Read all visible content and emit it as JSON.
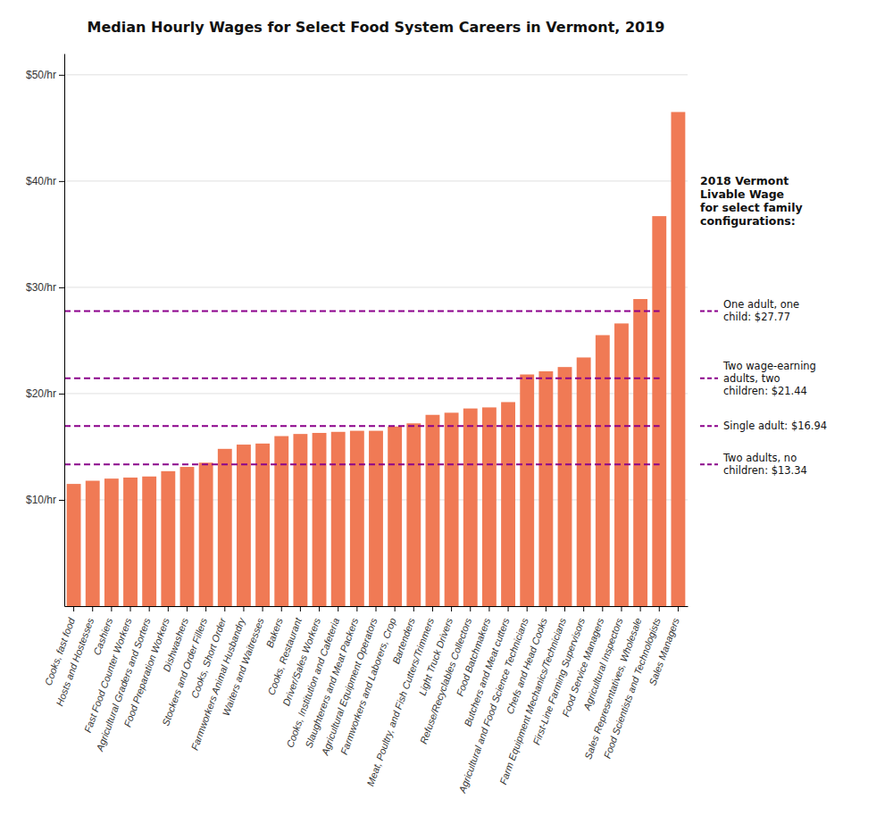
{
  "chart_data": {
    "type": "bar",
    "title": "Median Hourly Wages for Select Food System Careers in Vermont, 2019",
    "categories": [
      "Cooks, fast food",
      "Hosts and Hostesses",
      "Cashiers",
      "Fast Food Counter Workers",
      "Agricultural Graders and Sorters",
      "Food Preparation Workers",
      "Dishwashers",
      "Stockers and Order Fillers",
      "Cooks, Short Order",
      "Farmworkers Animal Husbandry",
      "Waiters and Waitresses",
      "Bakers",
      "Cooks, Restaurant",
      "Driver/Sales Workers",
      "Cooks, Institution and Cafeteria",
      "Slaughterers and Meat Packers",
      "Agricultural Equipment Operators",
      "Farmworkers and Laborers, Crop",
      "Bartenders",
      "Meat, Poultry, and Fish Cutters/Trimmers",
      "Light Truck Drivers",
      "Refuse/Recyclables Collectors",
      "Food Batchmakers",
      "Butchers and Meat cutters",
      "Agricultural and Food Science Technicians",
      "Chefs and Head Cooks",
      "Farm Equipment Mechanics/Technicians",
      "First-Line Farming Supervisors",
      "Food Service Managers",
      "Agricultural Inspectors",
      "Sales Representatives, Wholesale",
      "Food Scientists and Technologists",
      "Sales Managers"
    ],
    "values": [
      11.5,
      11.8,
      12.0,
      12.1,
      12.2,
      12.7,
      13.1,
      13.5,
      14.8,
      15.2,
      15.3,
      16.0,
      16.2,
      16.3,
      16.4,
      16.5,
      16.5,
      16.9,
      17.2,
      18.0,
      18.2,
      18.6,
      18.7,
      19.2,
      21.8,
      22.1,
      22.5,
      23.4,
      25.5,
      26.6,
      28.9,
      36.7,
      46.5
    ],
    "color": "#F07A55",
    "ylim": [
      0,
      52
    ],
    "yticks": [
      {
        "value": 10,
        "label": "$10/hr"
      },
      {
        "value": 20,
        "label": "$20/hr"
      },
      {
        "value": 30,
        "label": "$30/hr"
      },
      {
        "value": 40,
        "label": "$40/hr"
      },
      {
        "value": 50,
        "label": "$50/hr"
      }
    ],
    "grid": true,
    "annotations": {
      "title": "2018 Vermont\nLivable Wage\nfor select family\nconfigurations:",
      "color": "#8B008B",
      "line_style": "dashed",
      "lines": [
        {
          "value": 27.77,
          "label": "One adult, one\nchild: $27.77"
        },
        {
          "value": 21.44,
          "label": "Two wage-earning\nadults, two\nchildren: $21.44"
        },
        {
          "value": 16.94,
          "label": "Single adult: $16.94"
        },
        {
          "value": 13.34,
          "label": "Two adults, no\nchildren: $13.34"
        }
      ]
    }
  }
}
